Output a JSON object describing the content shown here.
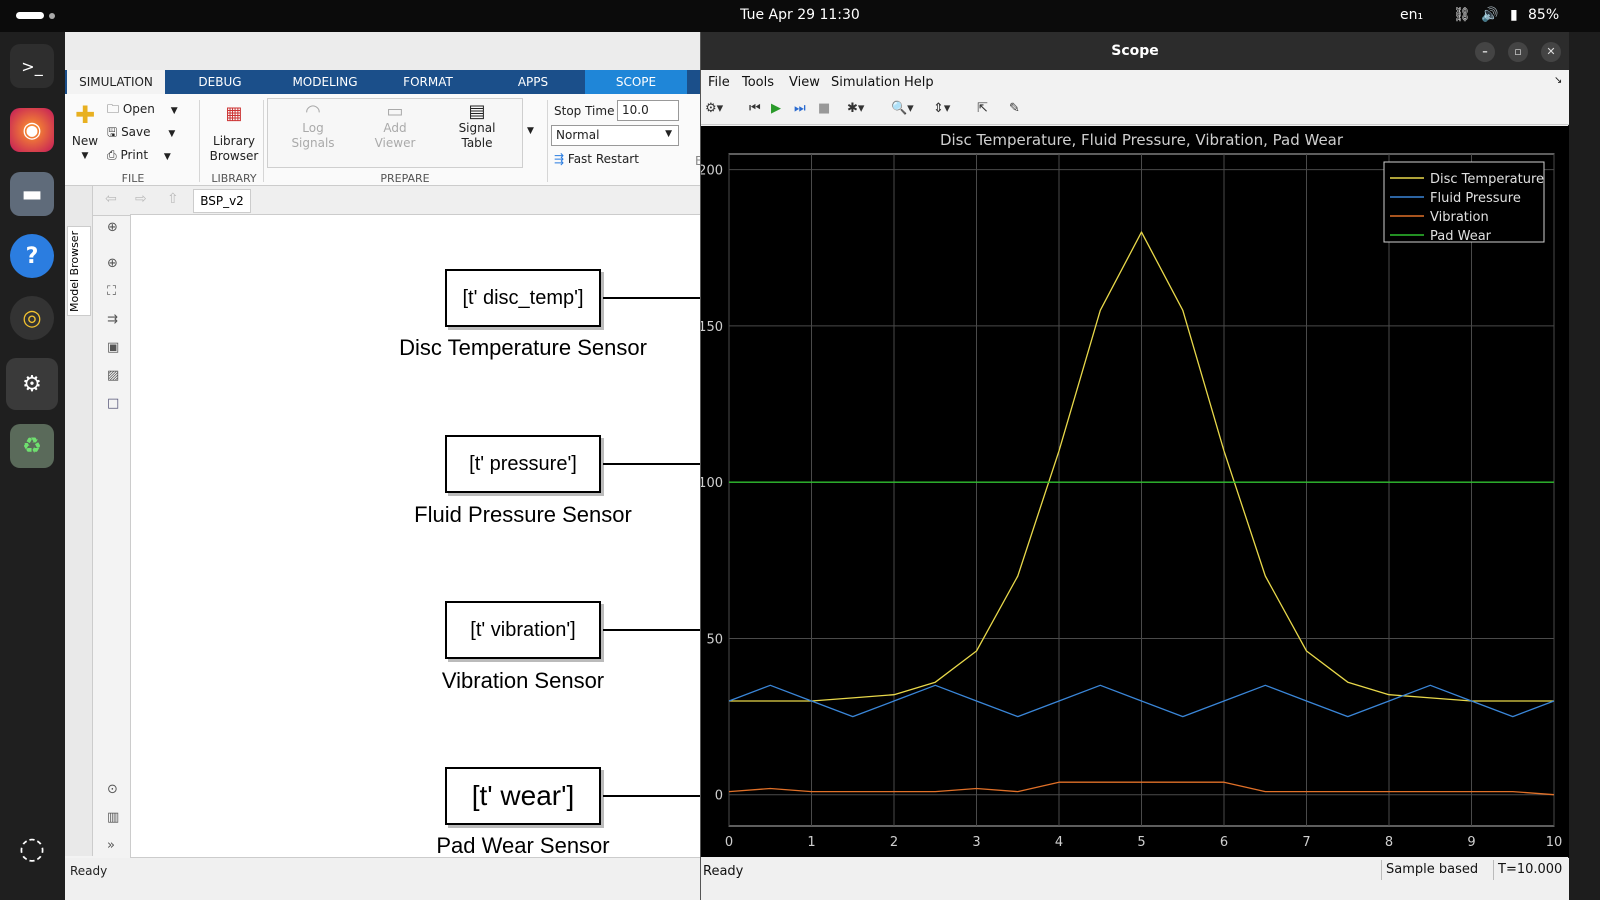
{
  "system": {
    "clock": "Tue Apr 29  11:30",
    "lang": "en₁",
    "battery": "85%"
  },
  "dock": [
    "terminal-icon",
    "firefox-icon",
    "files-icon",
    "help-icon",
    "rhythmbox-icon",
    "settings-icon",
    "trash-icon",
    "ubuntu-logo-icon"
  ],
  "simulink": {
    "tabs": [
      "SIMULATION",
      "DEBUG",
      "MODELING",
      "FORMAT",
      "APPS",
      "SCOPE"
    ],
    "file": {
      "new": "New",
      "open": "Open",
      "save": "Save",
      "print": "Print",
      "group": "FILE"
    },
    "library": {
      "label1": "Library",
      "label2": "Browser",
      "group": "LIBRARY"
    },
    "prepare": {
      "log1": "Log",
      "log2": "Signals",
      "add1": "Add",
      "add2": "Viewer",
      "sig1": "Signal",
      "sig2": "Table",
      "group": "PREPARE"
    },
    "sim": {
      "stop_time_label": "Stop Time",
      "stop_time": "10.0",
      "mode": "Normal",
      "fast_restart": "Fast Restart",
      "cut": "E"
    },
    "model_tab": "BSP_v2",
    "model_browser": "Model Browser",
    "blocks": [
      {
        "code": "[t' disc_temp']",
        "label": "Disc Temperature Sensor"
      },
      {
        "code": "[t' pressure']",
        "label": "Fluid Pressure Sensor"
      },
      {
        "code": "[t' vibration']",
        "label": "Vibration Sensor"
      },
      {
        "code": "[t' wear']",
        "label": "Pad Wear Sensor"
      }
    ],
    "status": "Ready"
  },
  "scope": {
    "title": "Scope",
    "menu": [
      "File",
      "Tools",
      "View",
      "Simulation",
      "Help"
    ],
    "status": "Ready",
    "sample": "Sample based",
    "time": "T=10.000"
  },
  "chart_data": {
    "type": "line",
    "title": "Disc Temperature, Fluid Pressure, Vibration, Pad Wear",
    "xlim": [
      0,
      10
    ],
    "ylim": [
      -10,
      205
    ],
    "xticks": [
      0,
      1,
      2,
      3,
      4,
      5,
      6,
      7,
      8,
      9,
      10
    ],
    "yticks": [
      0,
      50,
      100,
      150,
      200
    ],
    "grid": true,
    "legend": "top-right",
    "x": [
      0,
      0.5,
      1,
      1.5,
      2,
      2.5,
      3,
      3.5,
      4,
      4.5,
      5,
      5.5,
      6,
      6.5,
      7,
      7.5,
      8,
      8.5,
      9,
      9.5,
      10
    ],
    "series": [
      {
        "name": "Disc Temperature",
        "color": "#e8d84a",
        "values": [
          30,
          30,
          30,
          31,
          32,
          36,
          46,
          70,
          110,
          155,
          180,
          155,
          110,
          70,
          46,
          36,
          32,
          31,
          30,
          30,
          30
        ]
      },
      {
        "name": "Fluid Pressure",
        "color": "#3a86d8",
        "values": [
          30,
          35,
          30,
          25,
          30,
          35,
          30,
          25,
          30,
          35,
          30,
          25,
          30,
          35,
          30,
          25,
          30,
          35,
          30,
          25,
          30
        ]
      },
      {
        "name": "Vibration",
        "color": "#e07028",
        "values": [
          1,
          2,
          1,
          1,
          1,
          1,
          2,
          1,
          4,
          4,
          4,
          4,
          4,
          1,
          1,
          1,
          1,
          1,
          1,
          1,
          0
        ]
      },
      {
        "name": "Pad Wear",
        "color": "#2fbf2f",
        "values": [
          100,
          100,
          100,
          100,
          100,
          100,
          100,
          100,
          100,
          100,
          100,
          100,
          100,
          100,
          100,
          100,
          100,
          100,
          100,
          100,
          100
        ]
      }
    ]
  }
}
